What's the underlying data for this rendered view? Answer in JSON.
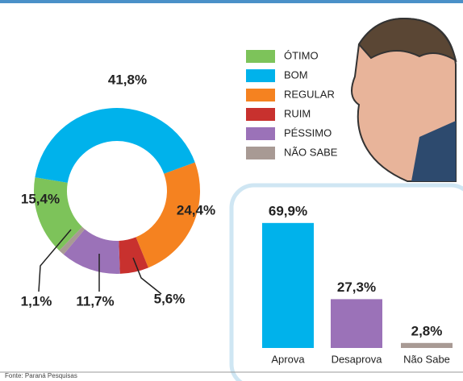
{
  "chart_data": [
    {
      "type": "donut",
      "categories": [
        "ÓTIMO",
        "BOM",
        "REGULAR",
        "RUIM",
        "PÉSSIMO",
        "NÃO SABE"
      ],
      "values": [
        15.4,
        41.8,
        24.4,
        5.6,
        11.7,
        1.1
      ],
      "value_labels": [
        "15,4%",
        "41,8%",
        "24,4%",
        "5,6%",
        "11,7%",
        "1,1%"
      ],
      "colors": [
        "#7dc35a",
        "#00b2eb",
        "#f58220",
        "#c8312e",
        "#9b72b8",
        "#a89a94"
      ]
    },
    {
      "type": "bar",
      "categories": [
        "Aprova",
        "Desaprova",
        "Não Sabe"
      ],
      "values": [
        69.9,
        27.3,
        2.8
      ],
      "value_labels": [
        "69,9%",
        "27,3%",
        "2,8%"
      ],
      "colors": [
        "#00b2eb",
        "#9b72b8",
        "#a89a94"
      ]
    }
  ],
  "source": "Fonte: Paraná Pesquisas"
}
